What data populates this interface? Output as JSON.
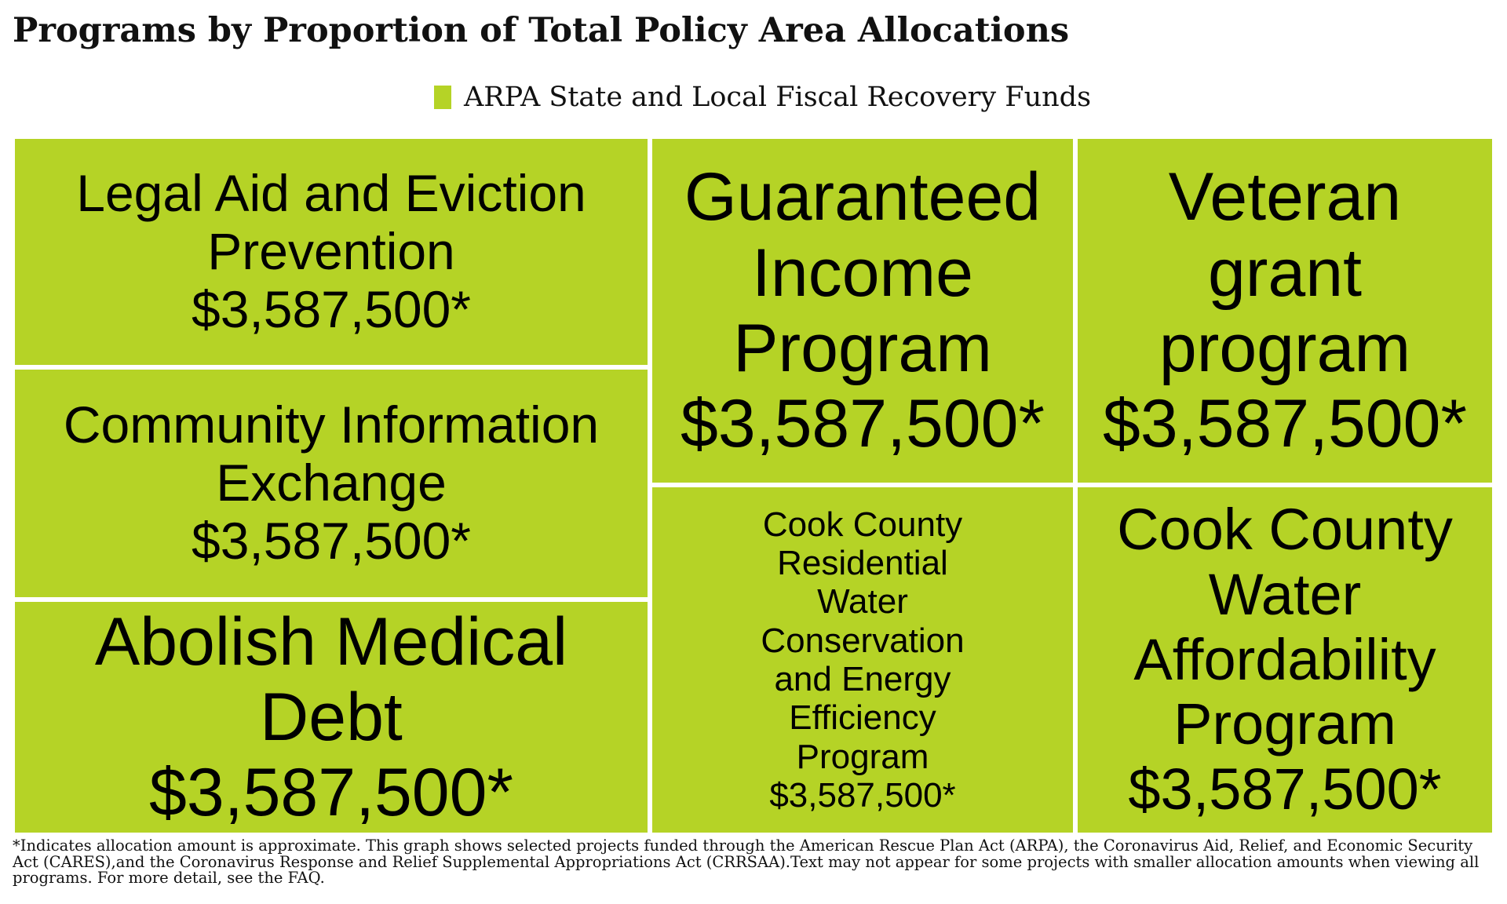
{
  "chart_data": {
    "type": "treemap",
    "title": "Programs by Proportion of Total Policy Area Allocations",
    "legend": [
      {
        "name": "ARPA State and Local Fiscal Recovery Funds",
        "color": "#b5d326"
      }
    ],
    "items": [
      {
        "label": "Legal Aid and Eviction Prevention",
        "value_label": "$3,587,500*",
        "value": 3587500
      },
      {
        "label": "Community Information Exchange",
        "value_label": "$3,587,500*",
        "value": 3587500
      },
      {
        "label": "Abolish Medical Debt",
        "value_label": "$3,587,500*",
        "value": 3587500
      },
      {
        "label": "Guaranteed Income Program",
        "value_label": "$3,587,500*",
        "value": 3587500
      },
      {
        "label": "Cook County Residential Water Conservation and Energy Efficiency Program",
        "value_label": "$3,587,500*",
        "value": 3587500
      },
      {
        "label": "Veteran grant program",
        "value_label": "$3,587,500*",
        "value": 3587500
      },
      {
        "label": "Cook County Water Affordability Program",
        "value_label": "$3,587,500*",
        "value": 3587500
      }
    ],
    "footnote": "*Indicates allocation amount is approximate. This graph shows selected projects funded through the American Rescue Plan Act (ARPA), the Coronavirus Aid, Relief, and Economic Security Act (CARES),and the Coronavirus Response and Relief Supplemental Appropriations Act (CRRSAA).Text may not appear for some projects with smaller allocation amounts when viewing all programs. For more detail, see the FAQ."
  }
}
